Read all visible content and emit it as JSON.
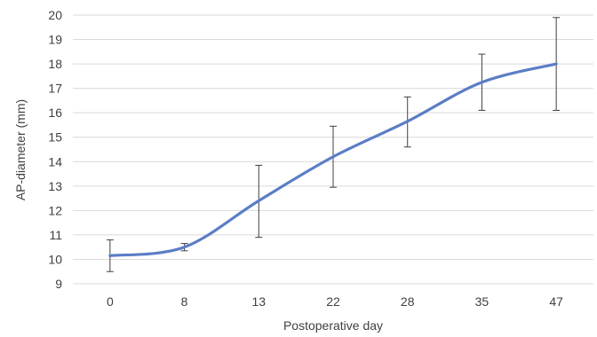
{
  "chart_data": {
    "type": "line",
    "title": "",
    "xlabel": "Postoperative day",
    "ylabel": "AP-diameter (mm)",
    "categories": [
      "0",
      "8",
      "13",
      "22",
      "28",
      "35",
      "47"
    ],
    "series": [
      {
        "values": [
          10.15,
          10.5,
          12.4,
          14.2,
          15.65,
          17.25,
          18.0
        ],
        "error_low": [
          9.5,
          10.35,
          10.9,
          12.95,
          14.6,
          16.1,
          16.1
        ],
        "error_high": [
          10.8,
          10.65,
          13.85,
          15.45,
          16.65,
          18.4,
          19.9
        ]
      }
    ],
    "yticks": [
      9,
      10,
      11,
      12,
      13,
      14,
      15,
      16,
      17,
      18,
      19,
      20
    ],
    "ylim": [
      9,
      20
    ],
    "grid": "horizontal",
    "legend": "none",
    "colors": {
      "line": "#5b7dc6",
      "grid": "#d9d9d9",
      "error_bar": "#404040",
      "text": "#404040"
    }
  }
}
